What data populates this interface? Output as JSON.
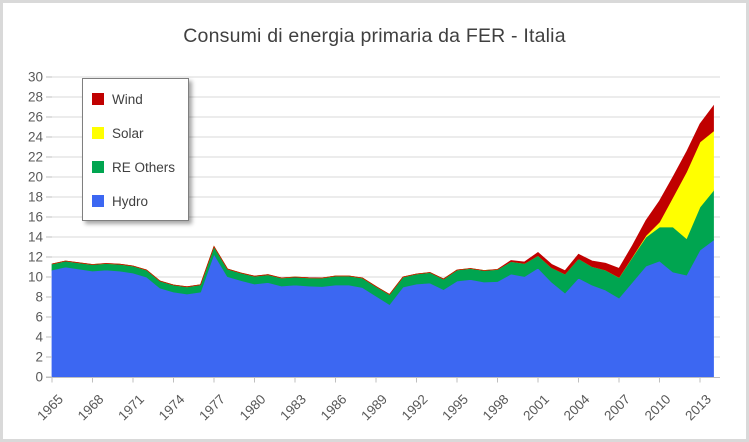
{
  "window": {
    "background": "#FFFFFF",
    "border_color": "#D9D9D9"
  },
  "chart_data": {
    "type": "area",
    "stacked": true,
    "title": "Consumi di energia primaria da FER - Italia",
    "title_color": "#404040",
    "xlabel": "",
    "ylabel": "",
    "ylim": [
      0,
      30
    ],
    "ytick_step": 2,
    "grid": true,
    "legend_position": "top-left",
    "colors": {
      "grid": "#D9D9D9",
      "axis": "#BFBFBF",
      "tick_label": "#595959"
    },
    "legend_items": [
      {
        "label": "Wind",
        "color": "#C00000"
      },
      {
        "label": "Solar",
        "color": "#FFFF00"
      },
      {
        "label": "RE Others",
        "color": "#00A550"
      },
      {
        "label": "Hydro",
        "color": "#3C67F2"
      }
    ],
    "x": [
      1965,
      1966,
      1967,
      1968,
      1969,
      1970,
      1971,
      1972,
      1973,
      1974,
      1975,
      1976,
      1977,
      1978,
      1979,
      1980,
      1981,
      1982,
      1983,
      1984,
      1985,
      1986,
      1987,
      1988,
      1989,
      1990,
      1991,
      1992,
      1993,
      1994,
      1995,
      1996,
      1997,
      1998,
      1999,
      2000,
      2001,
      2002,
      2003,
      2004,
      2005,
      2006,
      2007,
      2008,
      2009,
      2010,
      2011,
      2012,
      2013,
      2014
    ],
    "xticks": [
      1965,
      1968,
      1971,
      1974,
      1977,
      1980,
      1983,
      1986,
      1989,
      1992,
      1995,
      1998,
      2001,
      2004,
      2007,
      2010,
      2013
    ],
    "series": [
      {
        "name": "Hydro",
        "color": "#3C67F2",
        "values": [
          10.7,
          11.0,
          10.8,
          10.6,
          10.7,
          10.6,
          10.4,
          10.0,
          8.9,
          8.5,
          8.3,
          8.5,
          12.3,
          10.05,
          9.65,
          9.3,
          9.45,
          9.1,
          9.2,
          9.1,
          9.05,
          9.2,
          9.2,
          8.95,
          8.1,
          7.25,
          9.0,
          9.3,
          9.4,
          8.75,
          9.6,
          9.75,
          9.5,
          9.55,
          10.3,
          10.05,
          10.9,
          9.5,
          8.4,
          9.9,
          9.2,
          8.7,
          7.9,
          9.5,
          11.1,
          11.6,
          10.5,
          10.2,
          12.7,
          13.7
        ]
      },
      {
        "name": "RE Others",
        "color": "#00A550",
        "values": [
          0.6,
          0.6,
          0.62,
          0.65,
          0.65,
          0.68,
          0.7,
          0.7,
          0.7,
          0.7,
          0.72,
          0.72,
          0.75,
          0.75,
          0.75,
          0.78,
          0.78,
          0.8,
          0.8,
          0.82,
          0.85,
          0.9,
          0.9,
          0.95,
          0.95,
          1.0,
          1.0,
          1.0,
          1.05,
          1.05,
          1.1,
          1.1,
          1.15,
          1.2,
          1.25,
          1.3,
          1.25,
          1.45,
          1.9,
          1.95,
          1.85,
          2.0,
          2.05,
          2.5,
          2.9,
          3.4,
          4.5,
          3.65,
          4.3,
          4.95
        ]
      },
      {
        "name": "Solar",
        "color": "#FFFF00",
        "values": [
          0,
          0,
          0,
          0,
          0,
          0,
          0,
          0,
          0,
          0,
          0,
          0,
          0,
          0,
          0,
          0,
          0,
          0,
          0,
          0,
          0,
          0,
          0,
          0,
          0,
          0,
          0,
          0,
          0,
          0,
          0,
          0,
          0,
          0,
          0,
          0,
          0,
          0,
          0,
          0,
          0,
          0,
          0.01,
          0.05,
          0.15,
          0.5,
          3.0,
          6.65,
          6.5,
          5.95
        ]
      },
      {
        "name": "Wind",
        "color": "#C00000",
        "values": [
          0,
          0,
          0,
          0,
          0,
          0,
          0,
          0,
          0,
          0,
          0,
          0,
          0,
          0,
          0,
          0,
          0,
          0,
          0,
          0,
          0,
          0,
          0,
          0,
          0,
          0,
          0,
          0,
          0,
          0,
          0,
          0,
          0,
          0,
          0.1,
          0.15,
          0.3,
          0.32,
          0.33,
          0.42,
          0.55,
          0.67,
          0.9,
          1.1,
          1.5,
          2.1,
          2.0,
          2.0,
          1.8,
          2.5
        ]
      }
    ]
  }
}
